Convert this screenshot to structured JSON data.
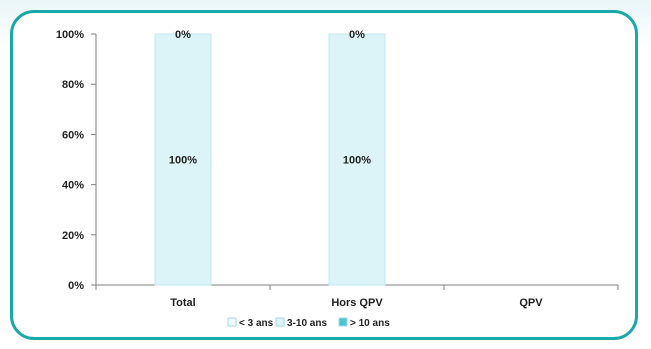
{
  "chart_data": {
    "type": "bar",
    "stacked": true,
    "categories": [
      "Total",
      "Hors QPV",
      "QPV"
    ],
    "series": [
      {
        "name": "< 3 ans",
        "values": [
          0,
          0,
          0
        ],
        "labels": [
          "0%",
          "0%",
          ""
        ],
        "color": "#f2fbfd"
      },
      {
        "name": "3-10 ans",
        "values": [
          100,
          100,
          0
        ],
        "labels": [
          "100%",
          "100%",
          ""
        ],
        "color": "#dcf3f7"
      },
      {
        "name": "> 10 ans",
        "values": [
          0,
          0,
          0
        ],
        "labels": [
          "",
          "",
          ""
        ],
        "color": "#4ec3d3"
      }
    ],
    "ylim": [
      0,
      100
    ],
    "yticks": [
      "0%",
      "20%",
      "40%",
      "60%",
      "80%",
      "100%"
    ],
    "grid": false,
    "legend": "bottom"
  },
  "colors": {
    "frame_border": "#1aa9a9",
    "bar_outline": "#bfe9ef",
    "axis": "#808080",
    "text": "#1f1f1f"
  }
}
